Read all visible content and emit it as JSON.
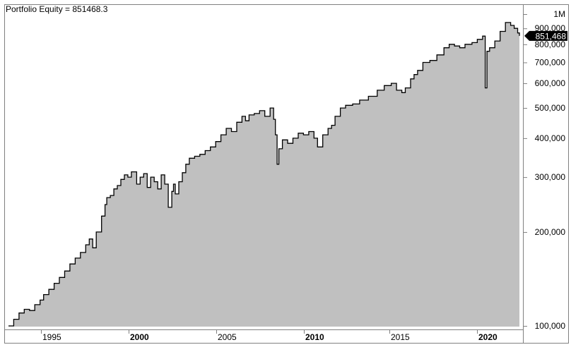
{
  "header": {
    "title": "Portfolio Equity = 851468.3"
  },
  "last_value_label": "851,468",
  "colors": {
    "fill": "#c0c0c0",
    "line": "#000000",
    "frame": "#808080",
    "background": "#ffffff",
    "label_bg": "#000000",
    "label_text": "#ffffff"
  },
  "chart_data": {
    "type": "area",
    "title": "Portfolio Equity = 851468.3",
    "xlabel": "",
    "ylabel": "",
    "y_scale": "log",
    "ylim": [
      97000,
      1050000
    ],
    "xlim": [
      1992.8,
      2022.3
    ],
    "grid": false,
    "legend": "none",
    "x_tick_labels": [
      "1995",
      "2000",
      "2005",
      "2010",
      "2015",
      "2020"
    ],
    "x_tick_values": [
      1995,
      2000,
      2005,
      2010,
      2015,
      2020
    ],
    "x_tick_bold": [
      false,
      true,
      false,
      true,
      false,
      true
    ],
    "y_tick_labels": [
      "1M",
      "900,000",
      "800,000",
      "700,000",
      "600,000",
      "500,000",
      "400,000",
      "300,000",
      "200,000",
      "100,000"
    ],
    "y_tick_values": [
      1000000,
      900000,
      800000,
      700000,
      600000,
      500000,
      400000,
      300000,
      200000,
      100000
    ],
    "last_value": 851468.3,
    "series": [
      {
        "name": "Portfolio Equity",
        "x": [
          1993.0,
          1993.3,
          1993.6,
          1993.9,
          1994.2,
          1994.5,
          1994.8,
          1995.0,
          1995.3,
          1995.6,
          1995.9,
          1996.2,
          1996.5,
          1996.8,
          1997.1,
          1997.4,
          1997.6,
          1997.8,
          1998.0,
          1998.3,
          1998.5,
          1998.6,
          1998.8,
          1999.0,
          1999.2,
          1999.4,
          1999.6,
          1999.8,
          2000.0,
          2000.3,
          2000.5,
          2000.7,
          2000.9,
          2001.1,
          2001.3,
          2001.5,
          2001.7,
          2001.9,
          2002.1,
          2002.3,
          2002.4,
          2002.5,
          2002.7,
          2002.9,
          2003.1,
          2003.3,
          2003.6,
          2003.9,
          2004.2,
          2004.5,
          2004.8,
          2005.1,
          2005.4,
          2005.7,
          2006.0,
          2006.3,
          2006.5,
          2006.7,
          2007.0,
          2007.3,
          2007.6,
          2007.9,
          2008.1,
          2008.2,
          2008.3,
          2008.4,
          2008.6,
          2008.9,
          2009.2,
          2009.5,
          2009.8,
          2010.1,
          2010.4,
          2010.6,
          2010.9,
          2011.2,
          2011.4,
          2011.6,
          2011.9,
          2012.2,
          2012.6,
          2013.0,
          2013.5,
          2014.0,
          2014.4,
          2014.8,
          2015.1,
          2015.4,
          2015.6,
          2015.9,
          2016.1,
          2016.3,
          2016.6,
          2017.0,
          2017.4,
          2017.8,
          2018.1,
          2018.4,
          2018.7,
          2019.0,
          2019.4,
          2019.7,
          2020.0,
          2020.15,
          2020.25,
          2020.4,
          2020.7,
          2021.0,
          2021.3,
          2021.6,
          2021.8,
          2022.0,
          2022.1
        ],
        "values": [
          100000,
          105000,
          110000,
          113000,
          112000,
          117000,
          121000,
          126000,
          131000,
          137000,
          143000,
          150000,
          158000,
          165000,
          172000,
          182000,
          190000,
          178000,
          200000,
          225000,
          245000,
          258000,
          262000,
          275000,
          282000,
          295000,
          305000,
          300000,
          312000,
          285000,
          300000,
          308000,
          278000,
          300000,
          290000,
          275000,
          305000,
          285000,
          240000,
          270000,
          285000,
          265000,
          290000,
          310000,
          330000,
          345000,
          350000,
          355000,
          365000,
          375000,
          390000,
          410000,
          430000,
          420000,
          450000,
          470000,
          455000,
          475000,
          480000,
          490000,
          470000,
          500000,
          460000,
          410000,
          330000,
          370000,
          395000,
          385000,
          400000,
          415000,
          410000,
          420000,
          400000,
          375000,
          410000,
          430000,
          440000,
          470000,
          500000,
          510000,
          515000,
          530000,
          545000,
          570000,
          590000,
          600000,
          570000,
          560000,
          580000,
          620000,
          640000,
          660000,
          700000,
          710000,
          740000,
          780000,
          800000,
          790000,
          780000,
          800000,
          810000,
          830000,
          850000,
          580000,
          760000,
          780000,
          820000,
          880000,
          940000,
          920000,
          900000,
          870000,
          851468
        ]
      }
    ]
  }
}
